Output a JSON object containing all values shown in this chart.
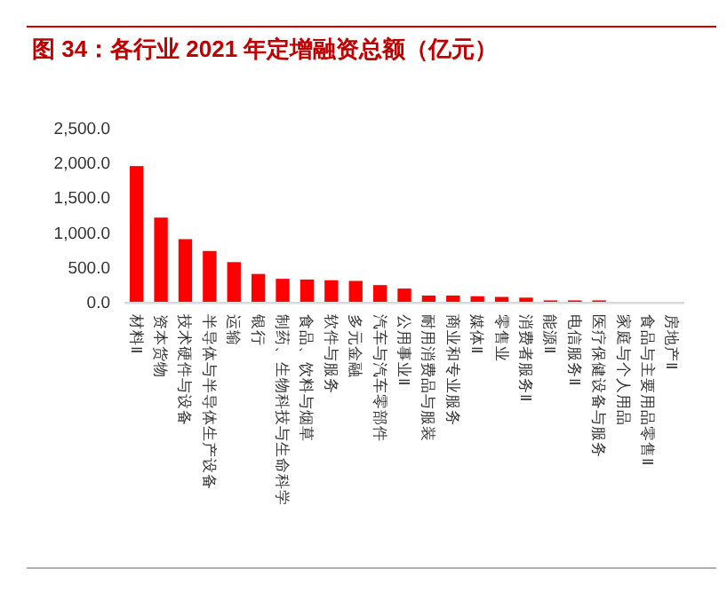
{
  "chart_data": {
    "type": "bar",
    "title": "图 34：各行业 2021 年定增融资总额（亿元）",
    "categories": [
      "材料Ⅱ",
      "资本货物",
      "技术硬件与设备",
      "半导体与半导体生产设备",
      "运输",
      "银行",
      "制药、生物科技与生命科学",
      "食品、饮料与烟草",
      "软件与服务",
      "多元金融",
      "汽车与汽车零部件",
      "公用事业Ⅱ",
      "耐用消费品与服装",
      "商业和专业服务",
      "媒体Ⅱ",
      "零售业",
      "消费者服务Ⅱ",
      "能源Ⅱ",
      "电信服务Ⅱ",
      "医疗保健设备与服务",
      "家庭与个人用品",
      "食品与主要用品零售Ⅱ",
      "房地产Ⅱ"
    ],
    "values": [
      1950,
      1210,
      900,
      730,
      570,
      400,
      330,
      320,
      310,
      300,
      240,
      190,
      90,
      90,
      80,
      70,
      60,
      20,
      20,
      20,
      0,
      0,
      0
    ],
    "color": "#ff0000",
    "ylim": [
      0,
      2500
    ],
    "yticks": [
      {
        "value": 0,
        "label": "0.0"
      },
      {
        "value": 500,
        "label": "500.0"
      },
      {
        "value": 1000,
        "label": "1,000.0"
      },
      {
        "value": 1500,
        "label": "1,500.0"
      },
      {
        "value": 2000,
        "label": "2,000.0"
      },
      {
        "value": 2500,
        "label": "2,500.0"
      }
    ],
    "grid": false
  }
}
